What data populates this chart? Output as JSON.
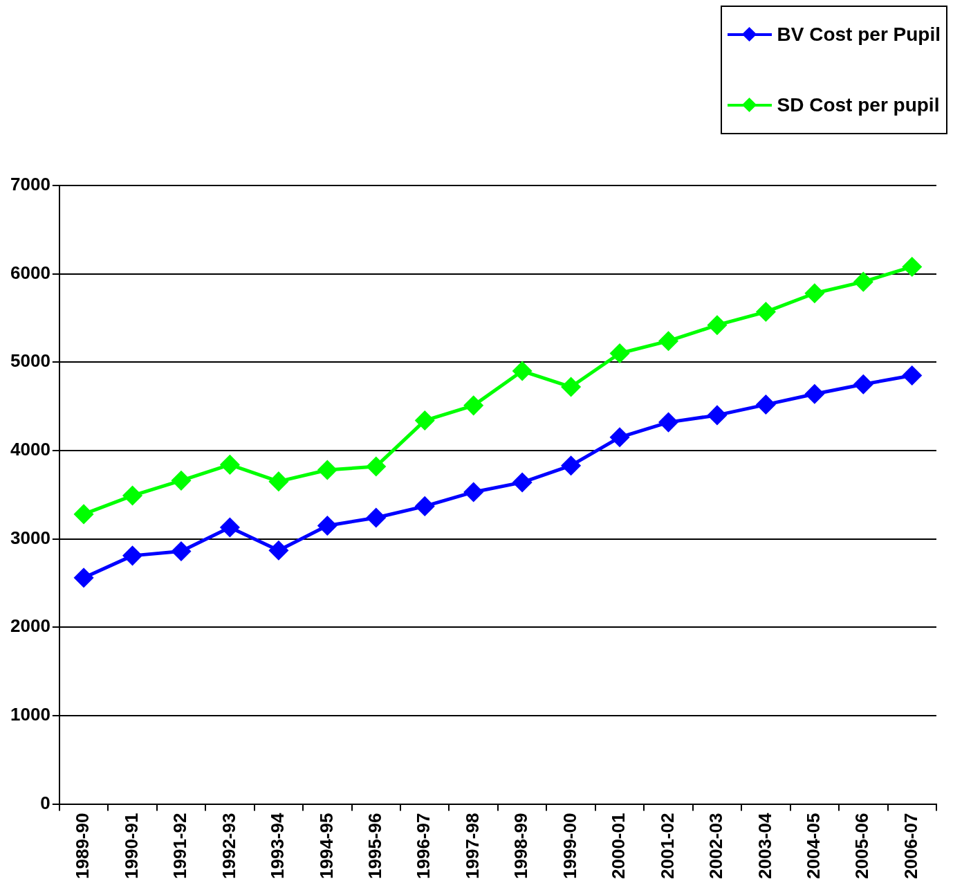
{
  "chart_data": {
    "type": "line",
    "categories": [
      "1989-90",
      "1990-91",
      "1991-92",
      "1992-93",
      "1993-94",
      "1994-95",
      "1995-96",
      "1996-97",
      "1997-98",
      "1998-99",
      "1999-00",
      "2000-01",
      "2001-02",
      "2002-03",
      "2003-04",
      "2004-05",
      "2005-06",
      "2006-07"
    ],
    "series": [
      {
        "name": "BV Cost per Pupil",
        "color": "#0000ff",
        "values": [
          2560,
          2810,
          2860,
          3130,
          2870,
          3150,
          3240,
          3370,
          3530,
          3640,
          3830,
          4150,
          4320,
          4400,
          4520,
          4640,
          4750,
          4850
        ]
      },
      {
        "name": "SD Cost per pupil",
        "color": "#00ff00",
        "values": [
          3280,
          3490,
          3660,
          3840,
          3650,
          3780,
          3820,
          4340,
          4510,
          4900,
          4720,
          5100,
          5240,
          5420,
          5570,
          5780,
          5910,
          6080
        ]
      }
    ],
    "ylim": [
      0,
      7000
    ],
    "yticks": [
      0,
      1000,
      2000,
      3000,
      4000,
      5000,
      6000,
      7000
    ],
    "grid": "y",
    "legend": "top right",
    "marker": "diamond",
    "line_style": "solid"
  }
}
